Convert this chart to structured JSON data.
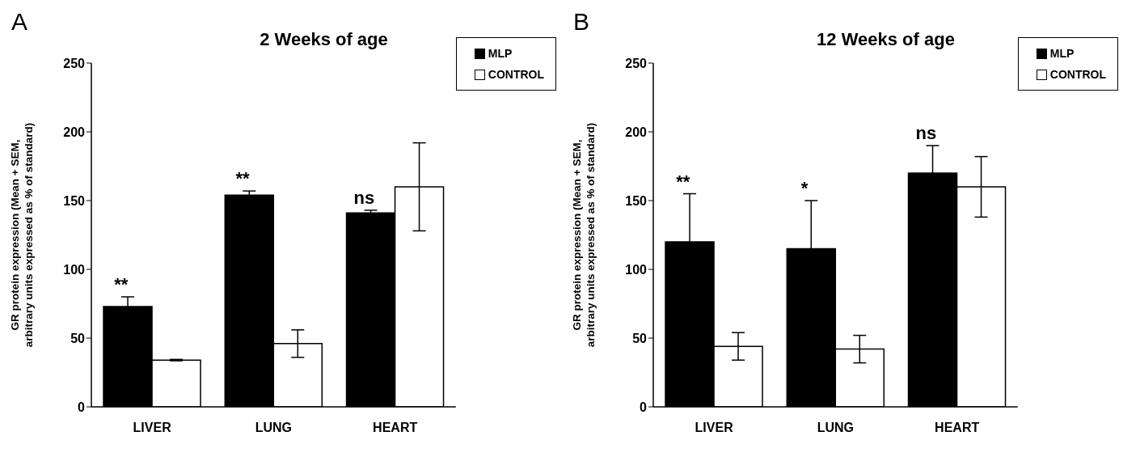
{
  "chart_data": [
    {
      "type": "bar",
      "title": "2 Weeks of age",
      "ylabel": "GR protein expression (Mean + SEM,\narbitrary units expressed as % of standard)",
      "categories": [
        "LIVER",
        "LUNG",
        "HEART"
      ],
      "series": [
        {
          "name": "MLP",
          "color": "#000000",
          "values": [
            73,
            154,
            141
          ],
          "errors": [
            7,
            3,
            2
          ]
        },
        {
          "name": "CONTROL",
          "color": "#ffffff",
          "values": [
            34,
            46,
            160
          ],
          "errors": [
            0.5,
            10,
            32
          ]
        }
      ],
      "ylim": [
        0,
        250
      ],
      "yticks": [
        0,
        50,
        100,
        150,
        200,
        250
      ],
      "grid": false,
      "legend": "top right",
      "annotations": [
        "A",
        "**",
        "**",
        "ns"
      ]
    },
    {
      "type": "bar",
      "title": "12 Weeks of age",
      "ylabel": "GR protein expression (Mean + SEM,\narbitrary units expressed as % of standard)",
      "categories": [
        "LIVER",
        "LUNG",
        "HEART"
      ],
      "series": [
        {
          "name": "MLP",
          "color": "#000000",
          "values": [
            120,
            115,
            170
          ],
          "errors": [
            35,
            35,
            20
          ]
        },
        {
          "name": "CONTROL",
          "color": "#ffffff",
          "values": [
            44,
            42,
            160
          ],
          "errors": [
            10,
            10,
            22
          ]
        }
      ],
      "ylim": [
        0,
        250
      ],
      "yticks": [
        0,
        50,
        100,
        150,
        200,
        250
      ],
      "grid": false,
      "legend": "top right",
      "annotations": [
        "B",
        "**",
        "*",
        "ns"
      ]
    }
  ]
}
